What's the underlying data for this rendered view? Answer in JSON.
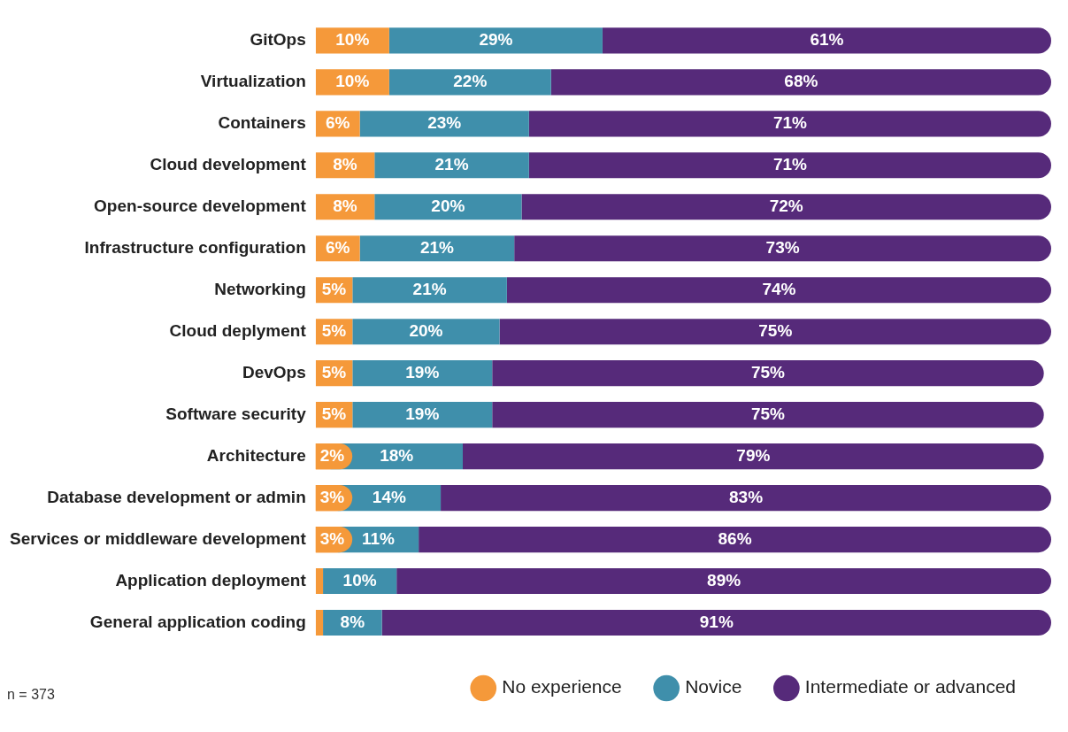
{
  "chart_data": {
    "type": "bar",
    "orientation": "horizontal",
    "stacked": true,
    "categories": [
      "GitOps",
      "Virtualization",
      "Containers",
      "Cloud development",
      "Open-source development",
      "Infrastructure configuration",
      "Networking",
      "Cloud deplyment",
      "DevOps",
      "Software security",
      "Architecture",
      "Database development or admin",
      "Services or middleware development",
      "Application deployment",
      "General application coding"
    ],
    "series": [
      {
        "name": "No experience",
        "color": "#f5993a",
        "values": [
          10,
          10,
          6,
          8,
          8,
          6,
          5,
          5,
          5,
          5,
          2,
          3,
          3,
          1,
          1
        ],
        "value_labels": [
          "10%",
          "10%",
          "6%",
          "8%",
          "8%",
          "6%",
          "5%",
          "5%",
          "5%",
          "5%",
          "2%",
          "3%",
          "3%",
          null,
          null
        ]
      },
      {
        "name": "Novice",
        "color": "#3f8fab",
        "values": [
          29,
          22,
          23,
          21,
          20,
          21,
          21,
          20,
          19,
          19,
          18,
          14,
          11,
          10,
          8
        ],
        "value_labels": [
          "29%",
          "22%",
          "23%",
          "21%",
          "20%",
          "21%",
          "21%",
          "20%",
          "19%",
          "19%",
          "18%",
          "14%",
          "11%",
          "10%",
          "8%"
        ]
      },
      {
        "name": "Intermediate or advanced",
        "color": "#562a7a",
        "values": [
          61,
          68,
          71,
          71,
          72,
          73,
          74,
          75,
          75,
          75,
          79,
          83,
          86,
          89,
          91
        ],
        "value_labels": [
          "61%",
          "68%",
          "71%",
          "71%",
          "72%",
          "73%",
          "74%",
          "75%",
          "75%",
          "75%",
          "79%",
          "83%",
          "86%",
          "89%",
          "91%"
        ]
      }
    ],
    "legend": "bottom",
    "grid": false,
    "annotations": [
      "n = 373"
    ]
  }
}
